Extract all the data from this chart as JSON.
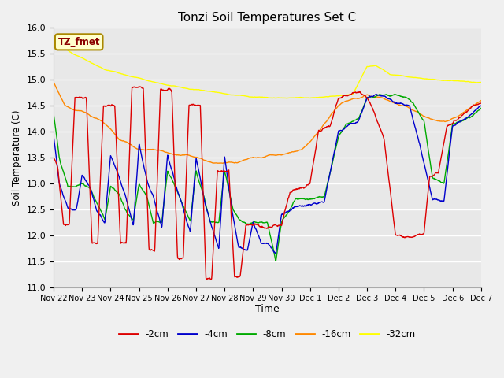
{
  "title": "Tonzi Soil Temperatures Set C",
  "xlabel": "Time",
  "ylabel": "Soil Temperature (C)",
  "ylim": [
    11.0,
    16.0
  ],
  "yticks": [
    11.0,
    11.5,
    12.0,
    12.5,
    13.0,
    13.5,
    14.0,
    14.5,
    15.0,
    15.5,
    16.0
  ],
  "x_labels": [
    "Nov 22",
    "Nov 23",
    "Nov 24",
    "Nov 25",
    "Nov 26",
    "Nov 27",
    "Nov 28",
    "Nov 29",
    "Nov 30",
    "Dec 1",
    "Dec 2",
    "Dec 3",
    "Dec 4",
    "Dec 5",
    "Dec 6",
    "Dec 7"
  ],
  "series_colors": [
    "#dd0000",
    "#0000cc",
    "#00aa00",
    "#ff8800",
    "#ffff00"
  ],
  "series_labels": [
    "-2cm",
    "-4cm",
    "-8cm",
    "-16cm",
    "-32cm"
  ],
  "legend_label": "TZ_fmet",
  "bg_color": "#e8e8e8",
  "grid_color": "#ffffff",
  "fig_color": "#f0f0f0",
  "tz32_nodes_x": [
    0,
    0.3,
    0.7,
    1.2,
    1.8,
    2.5,
    3.2,
    4.0,
    4.8,
    5.5,
    6.2,
    7.0,
    7.8,
    8.5,
    9.2,
    10.0,
    10.5,
    11.0,
    11.3,
    11.8,
    12.5,
    13.0,
    13.5,
    14.0,
    14.5,
    15.0
  ],
  "tz32_nodes_y": [
    15.75,
    15.65,
    15.5,
    15.35,
    15.2,
    15.1,
    15.0,
    14.9,
    14.82,
    14.78,
    14.72,
    14.67,
    14.65,
    14.65,
    14.66,
    14.68,
    14.72,
    15.25,
    15.28,
    15.1,
    15.05,
    15.02,
    15.0,
    14.98,
    14.96,
    14.95
  ],
  "tz16_nodes_x": [
    0,
    0.4,
    0.8,
    1.0,
    1.3,
    1.7,
    2.0,
    2.3,
    2.7,
    3.0,
    3.3,
    3.7,
    4.0,
    4.3,
    4.7,
    5.0,
    5.3,
    5.5,
    5.8,
    6.0,
    6.3,
    6.5,
    6.7,
    7.0,
    7.3,
    7.5,
    7.8,
    8.0,
    8.3,
    8.7,
    9.0,
    9.3,
    9.7,
    10.0,
    10.3,
    10.7,
    11.0,
    11.5,
    12.0,
    12.5,
    13.0,
    13.5,
    13.8,
    14.2,
    14.6,
    15.0
  ],
  "tz16_nodes_y": [
    14.95,
    14.5,
    14.4,
    14.4,
    14.3,
    14.2,
    14.05,
    13.85,
    13.75,
    13.65,
    13.65,
    13.65,
    13.6,
    13.55,
    13.55,
    13.5,
    13.45,
    13.4,
    13.4,
    13.4,
    13.4,
    13.4,
    13.45,
    13.5,
    13.5,
    13.55,
    13.55,
    13.55,
    13.6,
    13.65,
    13.8,
    14.0,
    14.3,
    14.5,
    14.6,
    14.65,
    14.7,
    14.65,
    14.55,
    14.45,
    14.3,
    14.2,
    14.2,
    14.3,
    14.45,
    14.6
  ],
  "tz8_nodes_x": [
    0,
    0.2,
    0.5,
    0.8,
    1.0,
    1.3,
    1.5,
    1.8,
    2.0,
    2.3,
    2.5,
    2.8,
    3.0,
    3.3,
    3.5,
    3.8,
    4.0,
    4.3,
    4.5,
    4.8,
    5.0,
    5.3,
    5.5,
    5.8,
    6.0,
    6.3,
    6.5,
    6.8,
    7.0,
    7.3,
    7.5,
    7.8,
    8.0,
    8.5,
    9.0,
    9.5,
    10.0,
    10.3,
    10.7,
    11.0,
    11.5,
    12.0,
    12.5,
    13.0,
    13.3,
    13.7,
    14.0,
    14.3,
    14.7,
    15.0
  ],
  "tz8_nodes_y": [
    14.35,
    13.5,
    12.95,
    12.95,
    13.0,
    12.9,
    12.65,
    12.3,
    12.95,
    12.8,
    12.5,
    12.3,
    13.0,
    12.7,
    12.25,
    12.25,
    13.25,
    12.9,
    12.65,
    12.25,
    13.25,
    12.7,
    12.25,
    12.25,
    13.25,
    12.5,
    12.3,
    12.2,
    12.25,
    12.25,
    12.25,
    11.5,
    12.25,
    12.7,
    12.7,
    12.75,
    13.9,
    14.15,
    14.25,
    14.65,
    14.7,
    14.7,
    14.65,
    14.2,
    13.1,
    13.0,
    14.15,
    14.2,
    14.3,
    14.45
  ],
  "tz4_nodes_x": [
    0,
    0.2,
    0.5,
    0.8,
    1.0,
    1.3,
    1.5,
    1.8,
    2.0,
    2.3,
    2.5,
    2.8,
    3.0,
    3.3,
    3.5,
    3.8,
    4.0,
    4.3,
    4.5,
    4.8,
    5.0,
    5.3,
    5.5,
    5.8,
    6.0,
    6.3,
    6.5,
    6.8,
    7.0,
    7.3,
    7.5,
    7.8,
    8.0,
    8.5,
    9.0,
    9.5,
    10.0,
    10.3,
    10.7,
    11.0,
    11.3,
    11.8,
    12.0,
    12.5,
    13.0,
    13.3,
    13.7,
    14.0,
    14.3,
    14.7,
    15.0
  ],
  "tz4_nodes_y": [
    13.9,
    13.0,
    12.5,
    12.5,
    13.15,
    12.9,
    12.5,
    12.25,
    13.55,
    13.1,
    12.8,
    12.2,
    13.75,
    13.0,
    12.75,
    12.15,
    13.55,
    12.95,
    12.6,
    12.05,
    13.5,
    12.65,
    12.25,
    11.75,
    13.5,
    12.35,
    11.75,
    11.7,
    12.25,
    11.85,
    11.85,
    11.65,
    12.4,
    12.55,
    12.6,
    12.65,
    14.0,
    14.1,
    14.2,
    14.65,
    14.7,
    14.65,
    14.55,
    14.5,
    13.4,
    12.7,
    12.65,
    14.1,
    14.2,
    14.35,
    14.5
  ],
  "tz2_nodes_x": [
    0,
    0.15,
    0.35,
    0.55,
    0.75,
    1.0,
    1.15,
    1.35,
    1.55,
    1.75,
    2.0,
    2.15,
    2.35,
    2.55,
    2.75,
    3.0,
    3.15,
    3.35,
    3.55,
    3.75,
    4.0,
    4.15,
    4.35,
    4.55,
    4.75,
    5.0,
    5.15,
    5.35,
    5.55,
    5.75,
    6.0,
    6.15,
    6.35,
    6.55,
    6.75,
    7.0,
    7.15,
    7.35,
    7.55,
    7.75,
    8.0,
    8.3,
    8.7,
    9.0,
    9.3,
    9.7,
    10.0,
    10.15,
    10.35,
    10.55,
    10.75,
    11.0,
    11.15,
    11.6,
    12.0,
    12.5,
    13.0,
    13.2,
    13.5,
    13.8,
    14.1,
    14.4,
    14.7,
    15.0
  ],
  "tz2_nodes_y": [
    13.5,
    13.3,
    12.2,
    12.2,
    14.65,
    14.65,
    14.65,
    11.85,
    11.85,
    14.5,
    14.5,
    14.5,
    11.85,
    11.85,
    14.85,
    14.85,
    14.85,
    11.7,
    11.7,
    14.8,
    14.8,
    14.8,
    11.55,
    11.55,
    14.5,
    14.5,
    14.5,
    11.15,
    11.15,
    13.25,
    13.25,
    13.25,
    11.2,
    11.2,
    12.2,
    12.2,
    12.2,
    12.15,
    12.15,
    12.2,
    12.2,
    12.85,
    12.9,
    13.0,
    14.0,
    14.1,
    14.65,
    14.7,
    14.7,
    14.75,
    14.75,
    14.65,
    14.5,
    13.85,
    12.0,
    11.95,
    12.05,
    13.15,
    13.2,
    14.1,
    14.2,
    14.35,
    14.5,
    14.55
  ]
}
